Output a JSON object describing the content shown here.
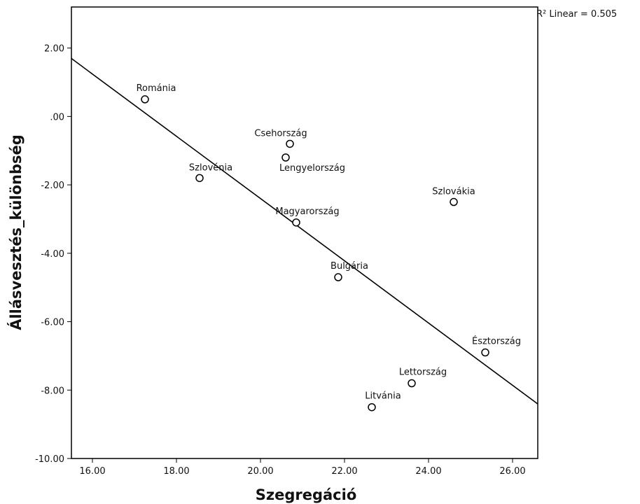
{
  "chart_data": {
    "type": "scatter",
    "xlabel": "Szegregáció",
    "ylabel": "Állásvesztés_különbség",
    "xlim": [
      15.5,
      26.6
    ],
    "ylim": [
      -10.0,
      3.2
    ],
    "x_ticks": [
      16,
      18,
      20,
      22,
      24,
      26
    ],
    "x_tick_labels": [
      "16.00",
      "18.00",
      "20.00",
      "22.00",
      "24.00",
      "26.00"
    ],
    "y_ticks": [
      -10,
      -8,
      -6,
      -4,
      -2,
      0,
      2
    ],
    "y_tick_labels": [
      "-10.00",
      "-8.00",
      "-6.00",
      "-4.00",
      "-2.00",
      ".00",
      "2.00"
    ],
    "points": [
      {
        "label": "Románia",
        "x": 17.25,
        "y": 0.5
      },
      {
        "label": "Szlovénia",
        "x": 18.55,
        "y": -1.8
      },
      {
        "label": "Csehország",
        "x": 20.7,
        "y": -0.8
      },
      {
        "label": "Lengyelország",
        "x": 20.6,
        "y": -1.2
      },
      {
        "label": "Magyarország",
        "x": 20.85,
        "y": -3.1
      },
      {
        "label": "Szlovákia",
        "x": 24.6,
        "y": -2.5
      },
      {
        "label": "Bulgária",
        "x": 21.85,
        "y": -4.7
      },
      {
        "label": "Észtország",
        "x": 25.35,
        "y": -6.9
      },
      {
        "label": "Lettország",
        "x": 23.6,
        "y": -7.8
      },
      {
        "label": "Litvánia",
        "x": 22.65,
        "y": -8.5
      }
    ],
    "fit_line": {
      "type": "linear",
      "slope": -0.91,
      "intercept": 15.8
    },
    "r2_text": "R² Linear = 0.505",
    "grid": false,
    "legend": "none"
  }
}
